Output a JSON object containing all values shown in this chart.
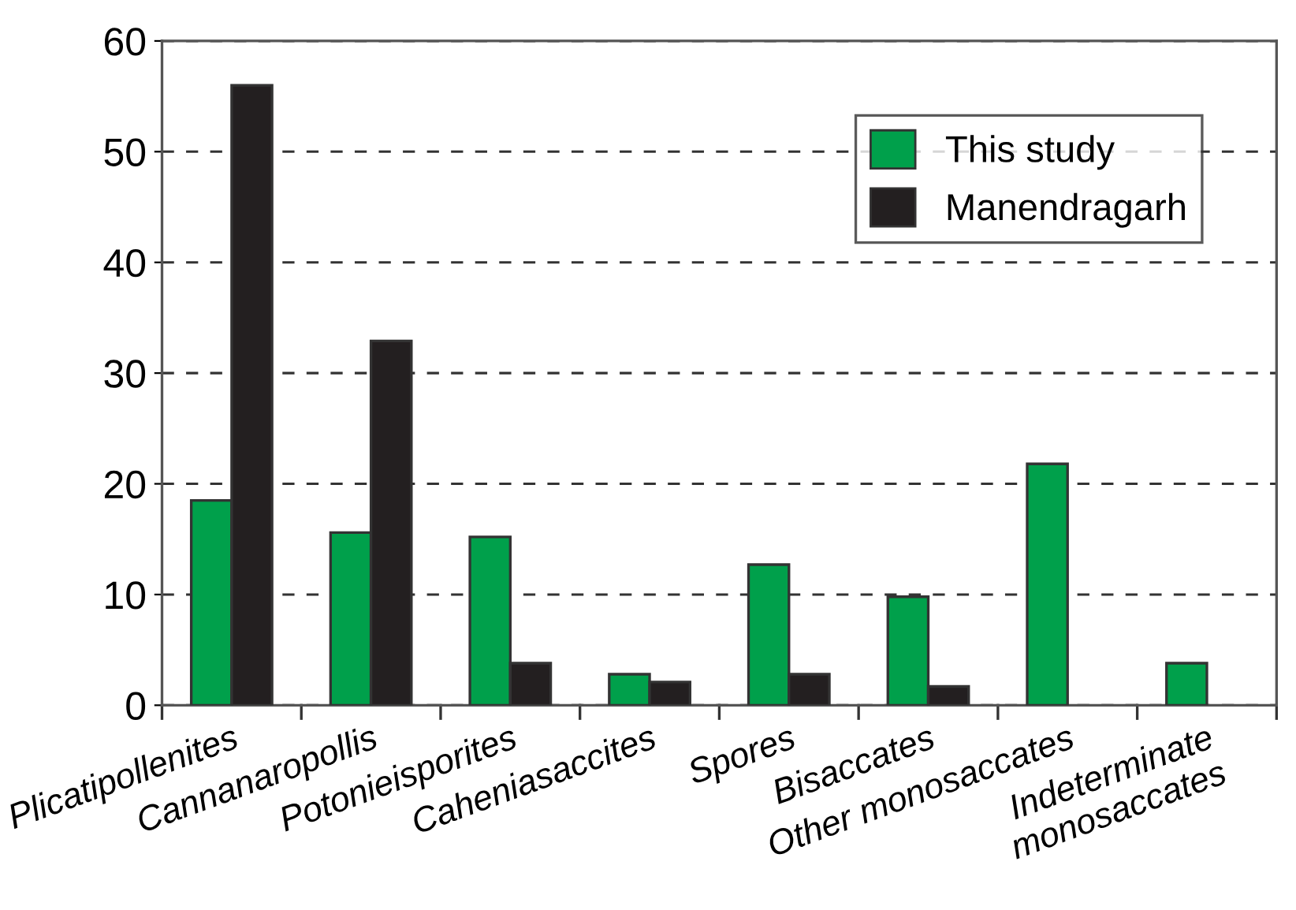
{
  "chart_data": {
    "type": "bar",
    "categories": [
      "Plicatipollenites",
      "Cannanaropollis",
      "Potonieisporites",
      "Caheniasaccites",
      "Spores",
      "Bisaccates",
      "Other monosaccates",
      "Indeterminate\nmonosaccates"
    ],
    "series": [
      {
        "name": "This study",
        "color": "#00a04b",
        "values": [
          18.5,
          15.6,
          15.2,
          2.8,
          12.7,
          9.8,
          21.8,
          3.8
        ]
      },
      {
        "name": "Manendragarh",
        "color": "#231f20",
        "values": [
          56,
          32.9,
          3.8,
          2.1,
          2.8,
          1.7,
          null,
          null
        ]
      }
    ],
    "ylim": [
      0,
      60
    ],
    "yticks": [
      0,
      10,
      20,
      30,
      40,
      50,
      60
    ],
    "grid": "y",
    "legend": "top right"
  }
}
